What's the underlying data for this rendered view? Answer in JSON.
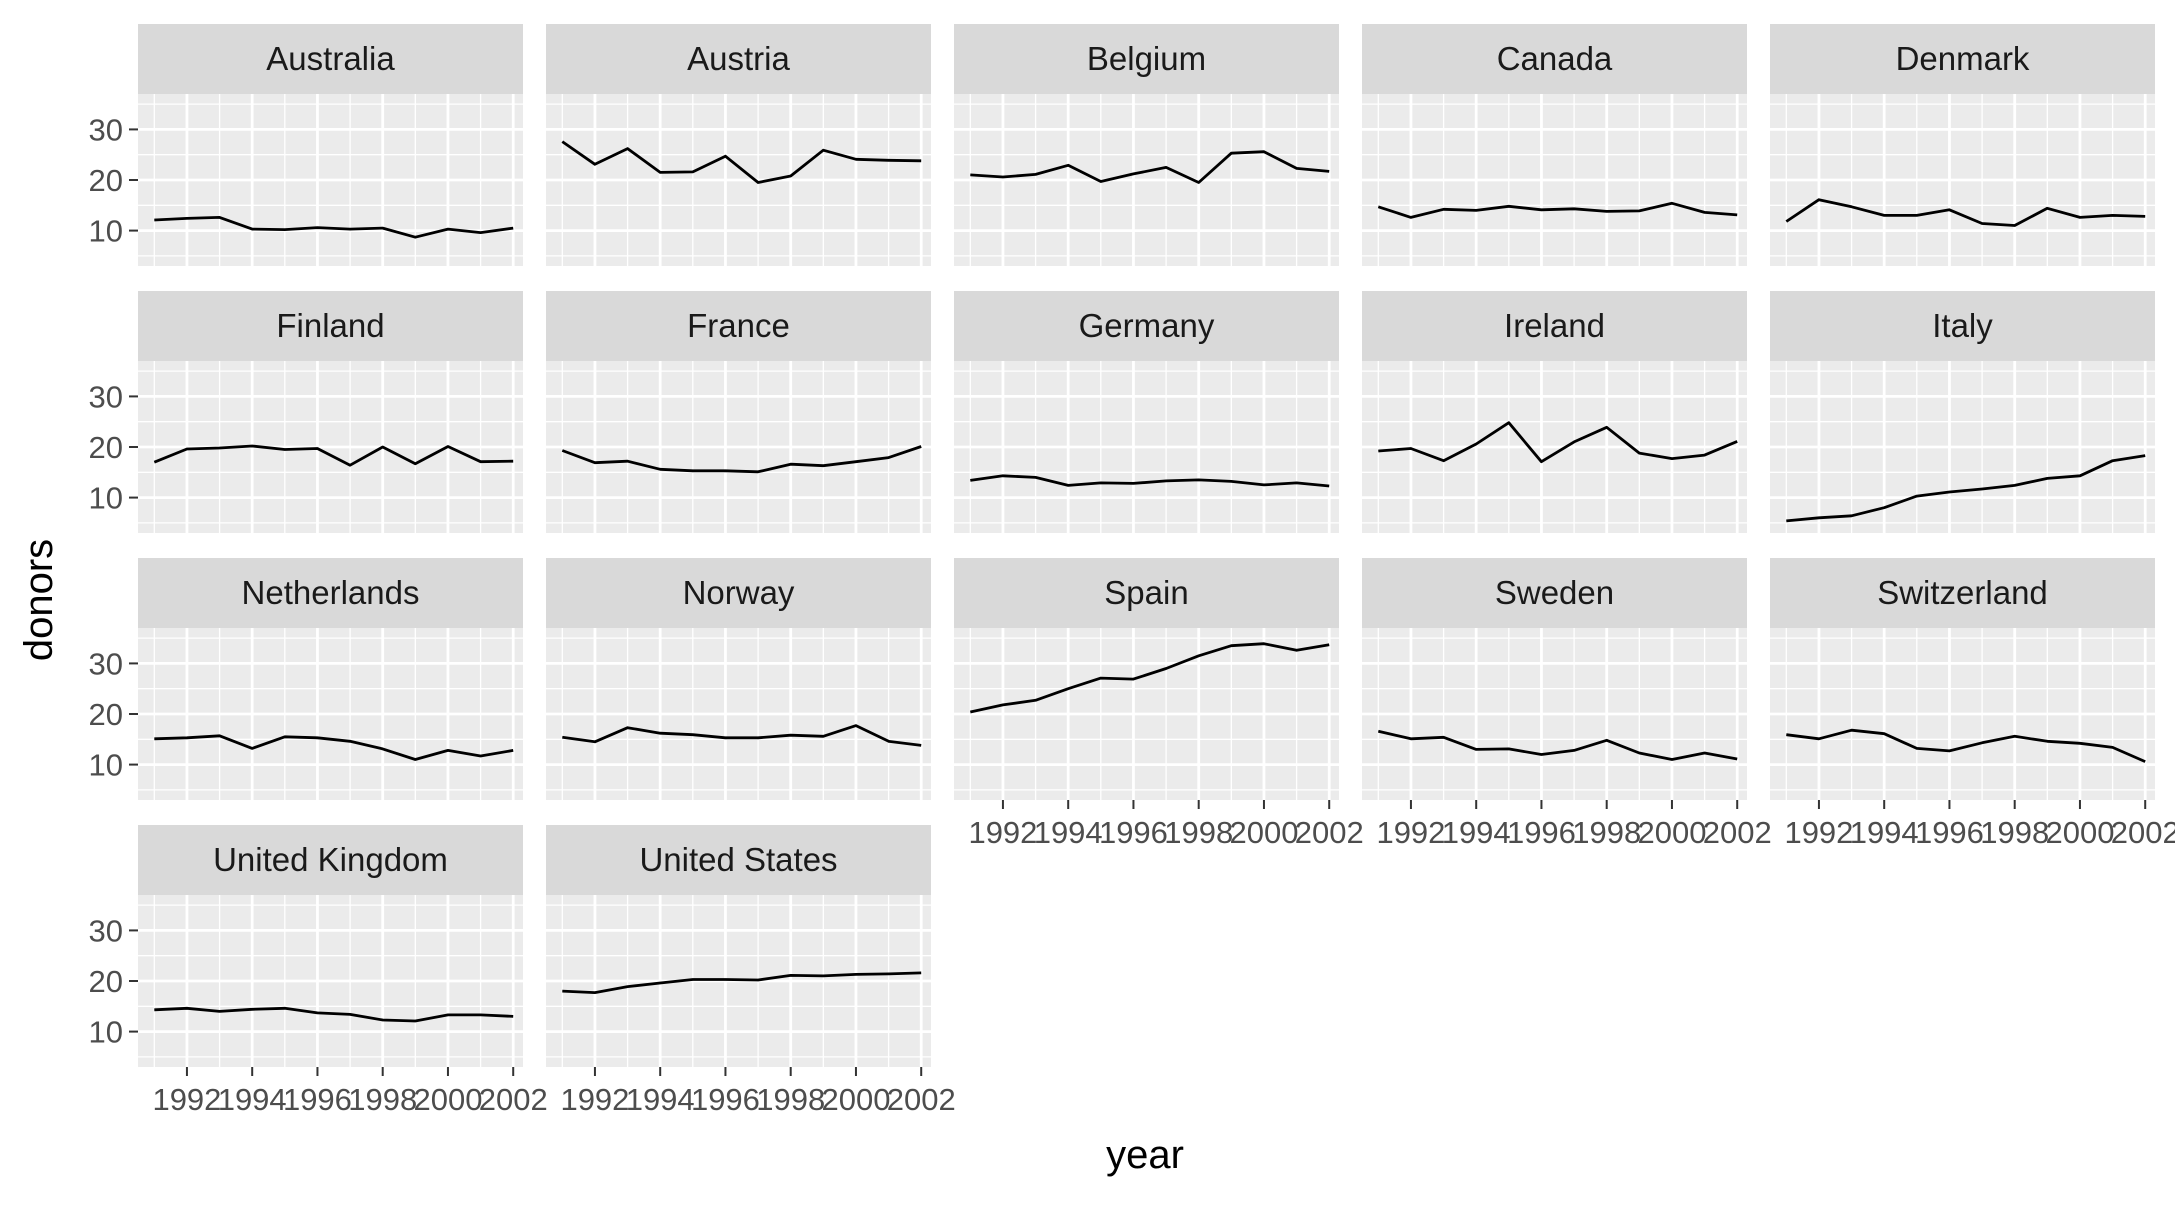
{
  "chart_data": {
    "type": "line",
    "facet": "country",
    "xlabel": "year",
    "ylabel": "donors",
    "xlim": [
      1990.5,
      2002.3
    ],
    "ylim": [
      3,
      37
    ],
    "x_ticks": [
      1992,
      1994,
      1996,
      1998,
      2000,
      2002
    ],
    "x_tick_labels": [
      "1992",
      "1994",
      "1996",
      "1998",
      "2000",
      "2002"
    ],
    "y_ticks": [
      10,
      20,
      30
    ],
    "y_tick_labels": [
      "10",
      "20",
      "30"
    ],
    "grid": true,
    "x": [
      1991,
      1992,
      1993,
      1994,
      1995,
      1996,
      1997,
      1998,
      1999,
      2000,
      2001,
      2002
    ],
    "panels": [
      {
        "name": "Australia",
        "values": [
          12.1,
          12.4,
          12.6,
          10.3,
          10.2,
          10.6,
          10.3,
          10.5,
          8.7,
          10.3,
          9.6,
          10.5
        ]
      },
      {
        "name": "Austria",
        "values": [
          27.6,
          23.1,
          26.2,
          21.5,
          21.6,
          24.7,
          19.5,
          20.8,
          25.9,
          24.1,
          23.9,
          23.8
        ]
      },
      {
        "name": "Belgium",
        "values": [
          21.0,
          20.6,
          21.1,
          22.9,
          19.7,
          21.2,
          22.5,
          19.5,
          25.3,
          25.6,
          22.3,
          21.7
        ]
      },
      {
        "name": "Canada",
        "values": [
          14.7,
          12.6,
          14.2,
          14.0,
          14.8,
          14.1,
          14.3,
          13.8,
          13.9,
          15.4,
          13.6,
          13.1
        ]
      },
      {
        "name": "Denmark",
        "values": [
          11.8,
          16.1,
          14.7,
          13.0,
          13.0,
          14.1,
          11.4,
          11.0,
          14.4,
          12.6,
          13.0,
          12.8
        ]
      },
      {
        "name": "Finland",
        "values": [
          17.0,
          19.6,
          19.8,
          20.2,
          19.5,
          19.7,
          16.4,
          20.0,
          16.7,
          20.1,
          17.1,
          17.2
        ]
      },
      {
        "name": "France",
        "values": [
          19.3,
          16.9,
          17.2,
          15.6,
          15.3,
          15.3,
          15.1,
          16.6,
          16.3,
          17.1,
          17.9,
          20.1
        ]
      },
      {
        "name": "Germany",
        "values": [
          13.4,
          14.3,
          14.0,
          12.4,
          12.9,
          12.8,
          13.3,
          13.5,
          13.2,
          12.5,
          12.9,
          12.3
        ]
      },
      {
        "name": "Ireland",
        "values": [
          19.2,
          19.7,
          17.3,
          20.6,
          24.8,
          17.1,
          21.0,
          23.9,
          18.8,
          17.7,
          18.4,
          21.1
        ]
      },
      {
        "name": "Italy",
        "values": [
          5.4,
          6.0,
          6.4,
          8.0,
          10.3,
          11.1,
          11.7,
          12.4,
          13.8,
          14.3,
          17.3,
          18.3
        ]
      },
      {
        "name": "Netherlands",
        "values": [
          15.1,
          15.3,
          15.7,
          13.2,
          15.5,
          15.3,
          14.6,
          13.1,
          11.0,
          12.8,
          11.7,
          12.8
        ]
      },
      {
        "name": "Norway",
        "values": [
          15.4,
          14.5,
          17.3,
          16.2,
          15.9,
          15.3,
          15.3,
          15.8,
          15.6,
          17.7,
          14.6,
          13.8
        ]
      },
      {
        "name": "Spain",
        "values": [
          20.4,
          21.8,
          22.7,
          25.0,
          27.1,
          26.9,
          29.0,
          31.5,
          33.5,
          33.9,
          32.6,
          33.7
        ]
      },
      {
        "name": "Sweden",
        "values": [
          16.6,
          15.1,
          15.4,
          13.0,
          13.1,
          12.0,
          12.8,
          14.8,
          12.3,
          11.0,
          12.3,
          11.1
        ]
      },
      {
        "name": "Switzerland",
        "values": [
          15.9,
          15.1,
          16.8,
          16.1,
          13.2,
          12.7,
          14.3,
          15.6,
          14.6,
          14.2,
          13.4,
          10.6
        ]
      },
      {
        "name": "United Kingdom",
        "values": [
          14.3,
          14.6,
          14.0,
          14.4,
          14.6,
          13.7,
          13.4,
          12.3,
          12.1,
          13.3,
          13.3,
          13.0
        ]
      },
      {
        "name": "United States",
        "values": [
          18.0,
          17.7,
          18.9,
          19.6,
          20.3,
          20.3,
          20.2,
          21.1,
          21.0,
          21.3,
          21.4,
          21.6
        ]
      }
    ]
  }
}
